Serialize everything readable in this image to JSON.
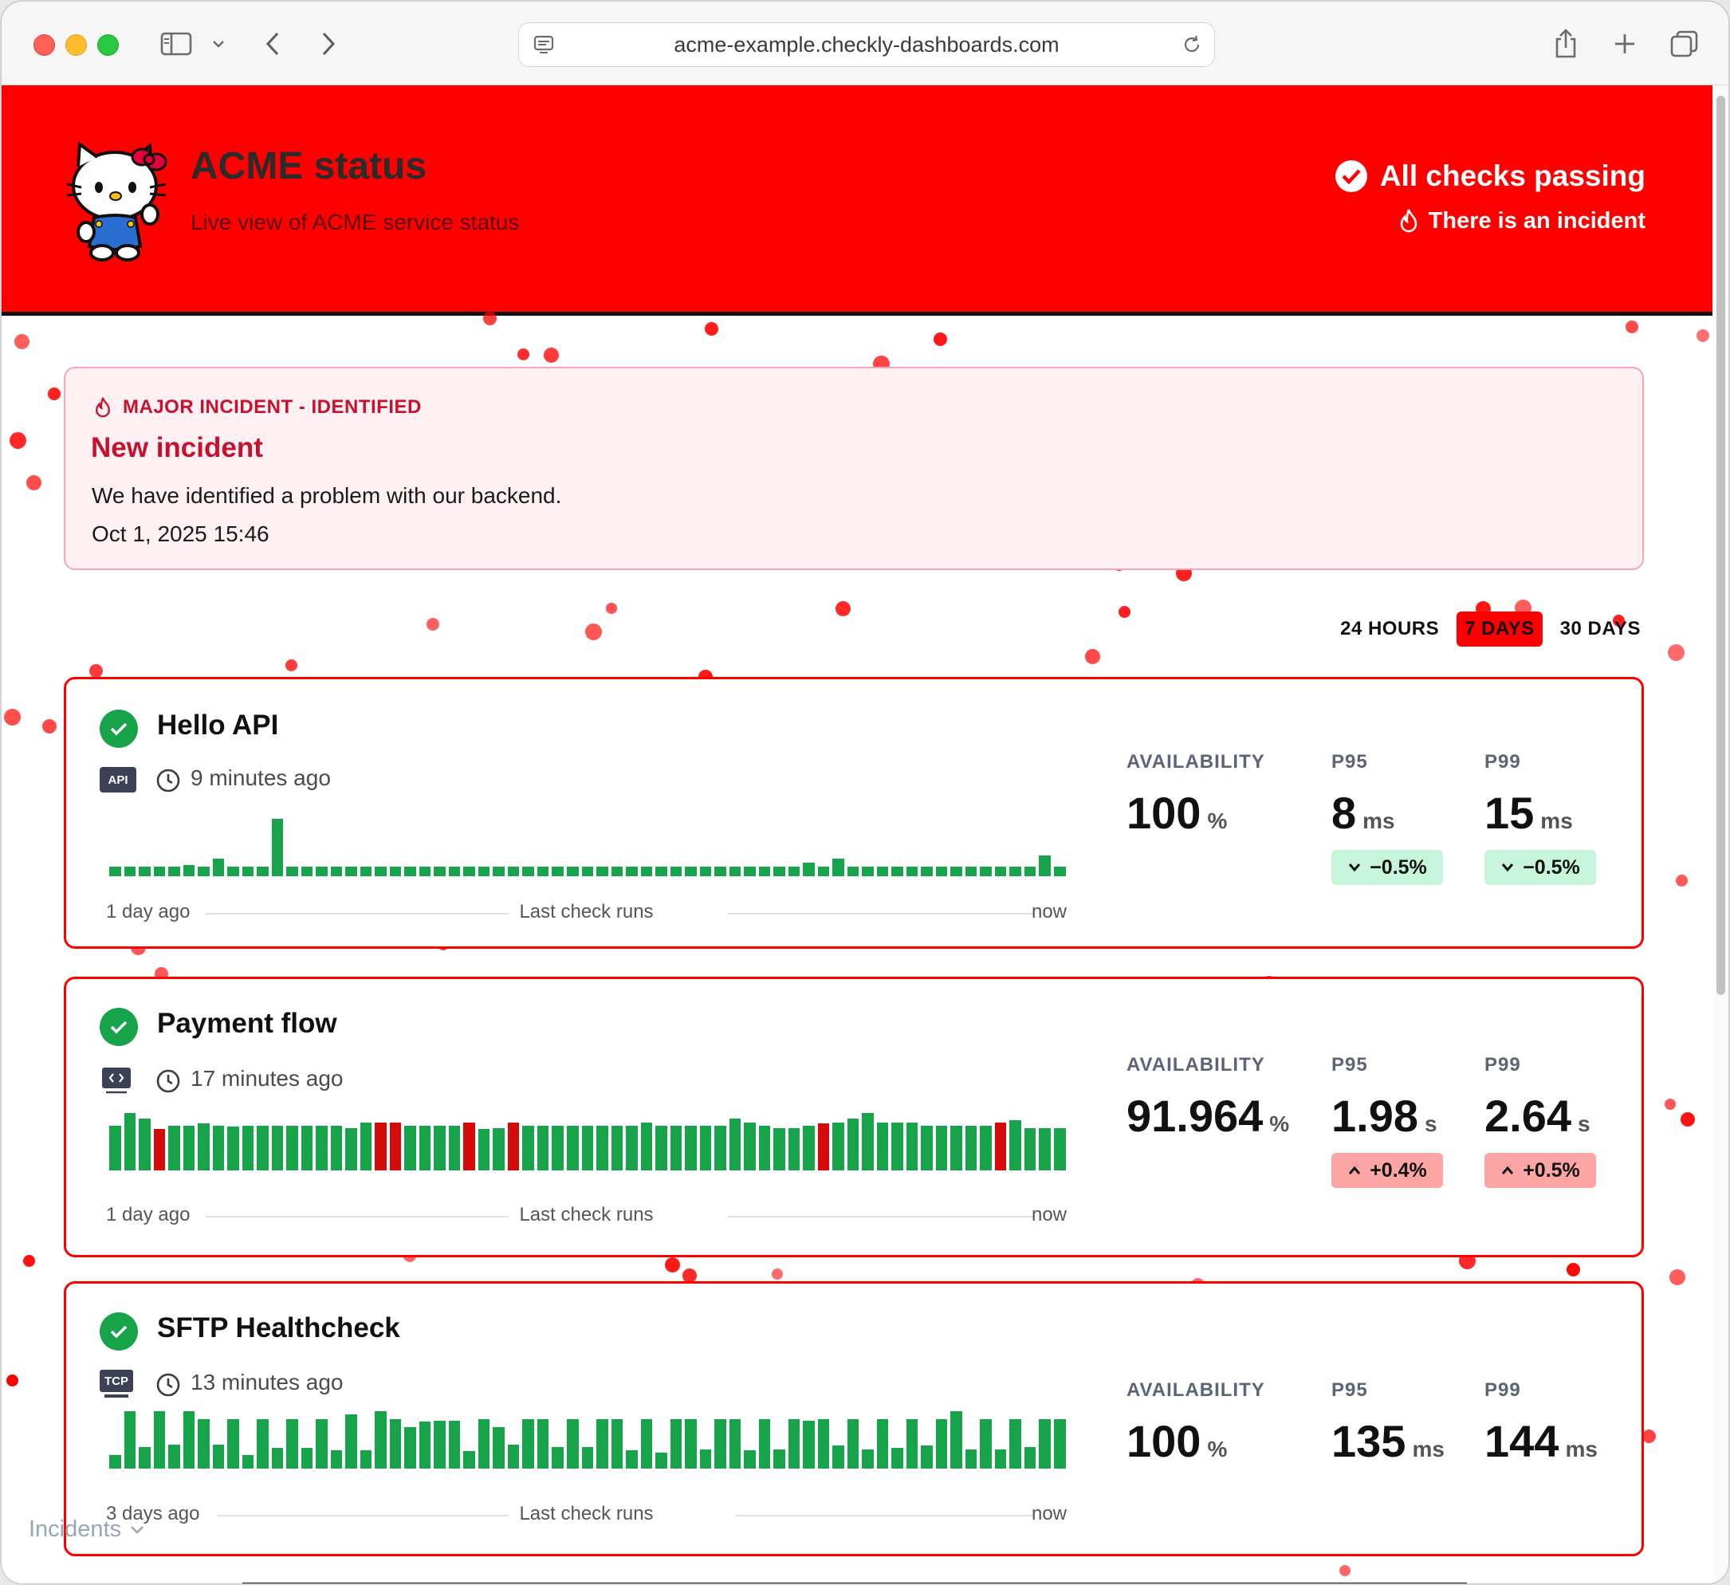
{
  "browser": {
    "url": "acme-example.checkly-dashboards.com"
  },
  "header": {
    "title": "ACME status",
    "subtitle": "Live view of ACME service status",
    "status_main": "All checks passing",
    "status_incident": "There is an incident",
    "colors": {
      "band": "#ff0000",
      "divider": "#111111"
    }
  },
  "incident": {
    "tag": "MAJOR INCIDENT - IDENTIFIED",
    "title": "New incident",
    "message": "We have identified a problem with our backend.",
    "date": "Oct 1, 2025 15:46"
  },
  "range": {
    "options": [
      "24 HOURS",
      "7 DAYS",
      "30 DAYS"
    ],
    "selected": "7 DAYS"
  },
  "checks": [
    {
      "name": "Hello API",
      "type_badge": "API",
      "last_run": "9 minutes ago",
      "axis": {
        "start": "1 day ago",
        "center": "Last check runs",
        "end": "now"
      },
      "runs": [
        1,
        1,
        1,
        1,
        1,
        1.2,
        1,
        1.8,
        1,
        1,
        1,
        6,
        1,
        1,
        1,
        1,
        1,
        1,
        1,
        1,
        1,
        1,
        1,
        1,
        1,
        1,
        1,
        1,
        1,
        1,
        1,
        1,
        1,
        1,
        1,
        1,
        1,
        1,
        1,
        1,
        1,
        1,
        1,
        1,
        1,
        1,
        1,
        1.4,
        1,
        1.8,
        1,
        1,
        1,
        1,
        1,
        1,
        1,
        1,
        1,
        1,
        1,
        1,
        1,
        2.2,
        1
      ],
      "failed": [],
      "availability": {
        "label": "AVAILABILITY",
        "value": "100",
        "unit": "%"
      },
      "p95": {
        "label": "P95",
        "value": "8",
        "unit": "ms",
        "delta": "−0.5%",
        "trend": "down"
      },
      "p99": {
        "label": "P99",
        "value": "15",
        "unit": "ms",
        "delta": "−0.5%",
        "trend": "down"
      }
    },
    {
      "name": "Payment flow",
      "type_badge": "",
      "last_run": "17 minutes ago",
      "axis": {
        "start": "1 day ago",
        "center": "Last check runs",
        "end": "now"
      },
      "runs": [
        0.78,
        1,
        0.9,
        0.72,
        0.78,
        0.78,
        0.82,
        0.78,
        0.76,
        0.78,
        0.78,
        0.78,
        0.78,
        0.78,
        0.78,
        0.78,
        0.74,
        0.84,
        0.84,
        0.84,
        0.78,
        0.78,
        0.78,
        0.78,
        0.84,
        0.72,
        0.74,
        0.84,
        0.78,
        0.78,
        0.78,
        0.78,
        0.78,
        0.78,
        0.78,
        0.78,
        0.84,
        0.78,
        0.78,
        0.78,
        0.78,
        0.78,
        0.9,
        0.84,
        0.78,
        0.74,
        0.74,
        0.78,
        0.82,
        0.84,
        0.9,
        1,
        0.84,
        0.84,
        0.84,
        0.78,
        0.78,
        0.78,
        0.78,
        0.78,
        0.84,
        0.88,
        0.74,
        0.74,
        0.74
      ],
      "failed": [
        3,
        18,
        19,
        24,
        27,
        48,
        60
      ],
      "availability": {
        "label": "AVAILABILITY",
        "value": "91.964",
        "unit": "%"
      },
      "p95": {
        "label": "P95",
        "value": "1.98",
        "unit": "s",
        "delta": "+0.4%",
        "trend": "up"
      },
      "p99": {
        "label": "P99",
        "value": "2.64",
        "unit": "s",
        "delta": "+0.5%",
        "trend": "up"
      }
    },
    {
      "name": "SFTP Healthcheck",
      "type_badge": "TCP",
      "last_run": "13 minutes ago",
      "axis": {
        "start": "3 days ago",
        "center": "Last check runs",
        "end": "now"
      },
      "runs": [
        0.24,
        1,
        0.38,
        1,
        0.42,
        1,
        0.86,
        0.42,
        0.86,
        0.24,
        0.86,
        0.36,
        0.86,
        0.36,
        0.86,
        0.32,
        0.94,
        0.32,
        1,
        0.86,
        0.72,
        0.82,
        0.84,
        0.84,
        0.3,
        0.86,
        0.72,
        0.42,
        0.86,
        0.86,
        0.38,
        0.86,
        0.38,
        0.86,
        0.86,
        0.32,
        0.86,
        0.28,
        0.86,
        0.86,
        0.34,
        0.86,
        0.86,
        0.32,
        0.86,
        0.34,
        0.86,
        0.84,
        0.86,
        0.4,
        0.86,
        0.34,
        0.86,
        0.36,
        0.86,
        0.4,
        0.86,
        1,
        0.34,
        0.86,
        0.34,
        0.86,
        0.38,
        0.86,
        0.86
      ],
      "failed": [],
      "availability": {
        "label": "AVAILABILITY",
        "value": "100",
        "unit": "%"
      },
      "p95": {
        "label": "P95",
        "value": "135",
        "unit": "ms"
      },
      "p99": {
        "label": "P99",
        "value": "144",
        "unit": "ms"
      }
    }
  ],
  "footer": {
    "incidents_label": "Incidents"
  }
}
